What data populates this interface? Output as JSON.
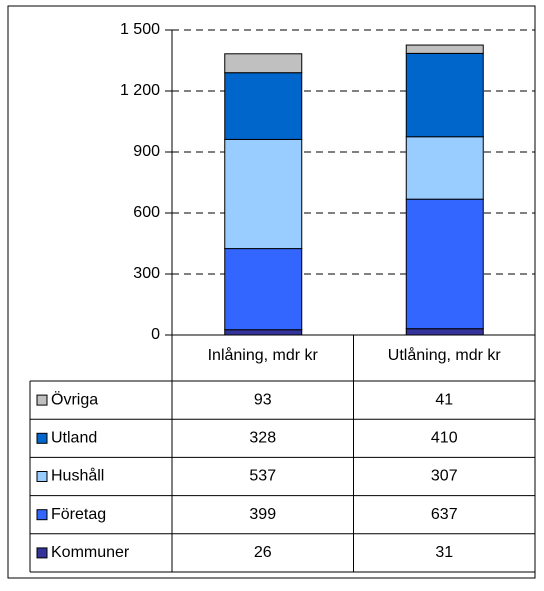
{
  "chart_data": {
    "type": "stacked-bar",
    "categories": [
      "Inlåning, mdr kr",
      "Utlåning, mdr kr"
    ],
    "series": [
      {
        "name": "Kommuner",
        "color": "#333399",
        "values": [
          26,
          31
        ]
      },
      {
        "name": "Företag",
        "color": "#3366ff",
        "values": [
          399,
          637
        ]
      },
      {
        "name": "Hushåll",
        "color": "#99ccff",
        "values": [
          537,
          307
        ]
      },
      {
        "name": "Utland",
        "color": "#0066cc",
        "values": [
          328,
          410
        ]
      },
      {
        "name": "Övriga",
        "color": "#c0c0c0",
        "values": [
          93,
          41
        ]
      }
    ],
    "ylim": [
      0,
      1500
    ],
    "yticks": [
      0,
      300,
      600,
      900,
      {
        "value": 1200,
        "label": "1 200"
      },
      {
        "value": 1500,
        "label": "1 500"
      }
    ],
    "grid": true
  }
}
